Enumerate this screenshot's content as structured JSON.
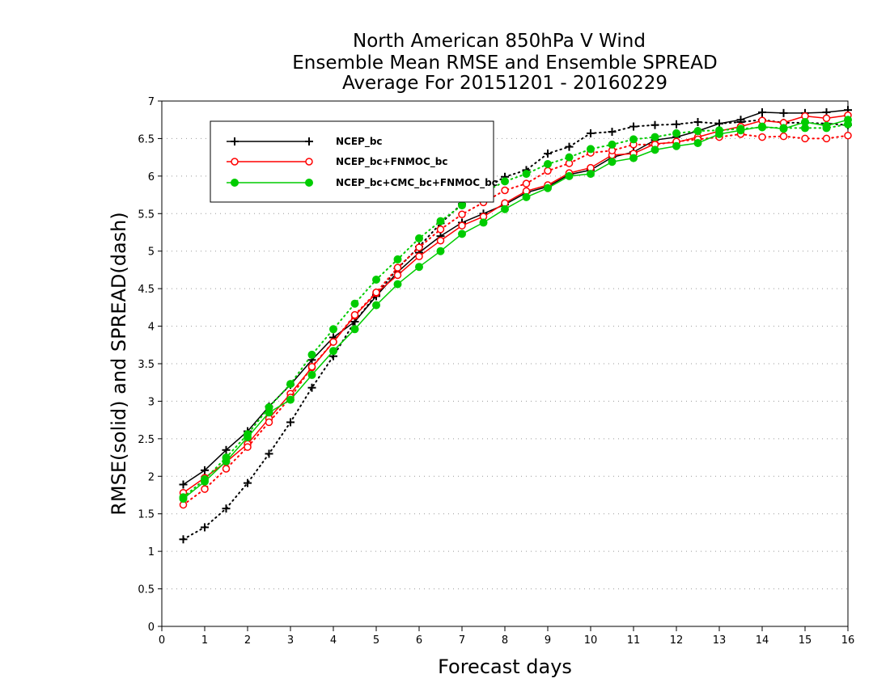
{
  "chart_data": {
    "type": "line",
    "title": [
      "North American 850hPa V Wind",
      "Ensemble Mean RMSE and Ensemble SPREAD",
      "Average For 20151201 - 20160229"
    ],
    "xlabel": "Forecast days",
    "ylabel": "RMSE(solid) and SPREAD(dash)",
    "xlim": [
      0,
      16
    ],
    "ylim": [
      0,
      7
    ],
    "xticks": [
      "0",
      "1",
      "2",
      "3",
      "4",
      "5",
      "6",
      "7",
      "8",
      "9",
      "10",
      "11",
      "12",
      "13",
      "14",
      "15",
      "16"
    ],
    "yticks": [
      "0",
      "0.5",
      "1",
      "1.5",
      "2",
      "2.5",
      "3",
      "3.5",
      "4",
      "4.5",
      "5",
      "5.5",
      "6",
      "6.5",
      "7"
    ],
    "grid": "horizontal dotted",
    "legend_position": "top-left",
    "x": [
      0.5,
      1,
      1.5,
      2,
      2.5,
      3,
      3.5,
      4,
      4.5,
      5,
      5.5,
      6,
      6.5,
      7,
      7.5,
      8,
      8.5,
      9,
      9.5,
      10,
      10.5,
      11,
      11.5,
      12,
      12.5,
      13,
      13.5,
      14,
      14.5,
      15,
      15.5,
      16
    ],
    "series": [
      {
        "name": "NCEP_bc",
        "color": "#000000",
        "marker": "plus",
        "rmse": [
          1.89,
          2.08,
          2.35,
          2.6,
          2.93,
          3.22,
          3.55,
          3.85,
          4.06,
          4.4,
          4.72,
          4.98,
          5.2,
          5.38,
          5.5,
          5.62,
          5.78,
          5.86,
          6.02,
          6.08,
          6.25,
          6.32,
          6.48,
          6.52,
          6.6,
          6.7,
          6.75,
          6.85,
          6.84,
          6.84,
          6.85,
          6.88
        ],
        "spread": [
          1.16,
          1.32,
          1.57,
          1.91,
          2.3,
          2.72,
          3.18,
          3.6,
          4.06,
          4.42,
          4.77,
          5.06,
          5.37,
          5.63,
          5.82,
          5.99,
          6.08,
          6.3,
          6.39,
          6.57,
          6.59,
          6.66,
          6.68,
          6.69,
          6.72,
          6.7,
          6.72,
          6.75,
          6.71,
          6.71,
          6.7,
          6.68
        ]
      },
      {
        "name": "NCEP_bc+FNMOC_bc",
        "color": "#ff0000",
        "marker": "open-circle",
        "rmse": [
          1.78,
          1.98,
          2.19,
          2.43,
          2.77,
          3.1,
          3.45,
          3.79,
          4.14,
          4.44,
          4.68,
          4.93,
          5.14,
          5.34,
          5.46,
          5.64,
          5.8,
          5.88,
          6.04,
          6.11,
          6.28,
          6.3,
          6.43,
          6.45,
          6.52,
          6.6,
          6.66,
          6.74,
          6.71,
          6.8,
          6.77,
          6.81
        ],
        "spread": [
          1.62,
          1.83,
          2.1,
          2.39,
          2.72,
          3.05,
          3.46,
          3.79,
          4.15,
          4.45,
          4.78,
          5.05,
          5.29,
          5.49,
          5.65,
          5.81,
          5.9,
          6.07,
          6.17,
          6.31,
          6.34,
          6.42,
          6.42,
          6.46,
          6.49,
          6.52,
          6.56,
          6.52,
          6.53,
          6.5,
          6.5,
          6.54
        ]
      },
      {
        "name": "NCEP_bc+CMC_bc+FNMOC_bc",
        "color": "#00cc00",
        "marker": "filled-circle",
        "rmse": [
          1.7,
          1.93,
          2.2,
          2.52,
          2.85,
          3.02,
          3.35,
          3.67,
          3.96,
          4.28,
          4.56,
          4.79,
          5.0,
          5.23,
          5.38,
          5.56,
          5.72,
          5.84,
          6.0,
          6.03,
          6.19,
          6.24,
          6.35,
          6.4,
          6.44,
          6.56,
          6.61,
          6.66,
          6.63,
          6.72,
          6.67,
          6.75
        ],
        "spread": [
          1.72,
          1.96,
          2.25,
          2.56,
          2.92,
          3.23,
          3.62,
          3.96,
          4.3,
          4.62,
          4.89,
          5.17,
          5.4,
          5.61,
          5.78,
          5.93,
          6.03,
          6.16,
          6.25,
          6.36,
          6.42,
          6.49,
          6.52,
          6.57,
          6.6,
          6.61,
          6.63,
          6.65,
          6.64,
          6.64,
          6.64,
          6.69
        ]
      }
    ]
  }
}
